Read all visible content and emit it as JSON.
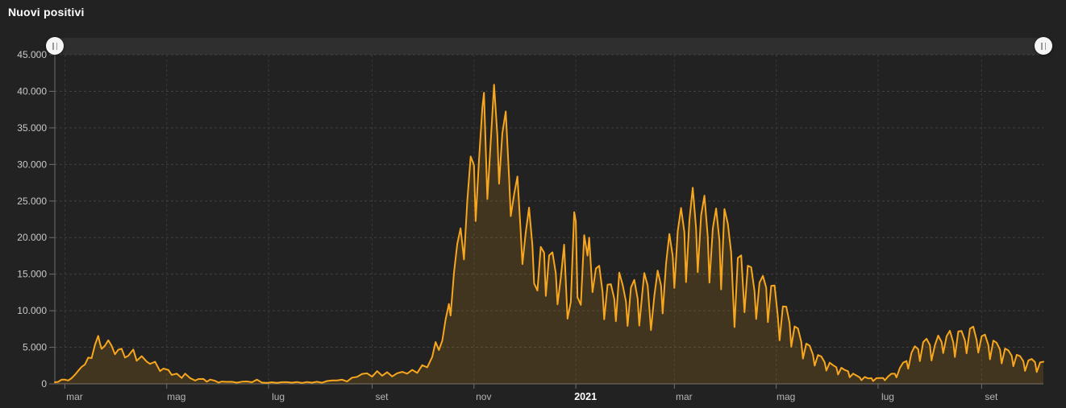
{
  "title": "Nuovi positivi",
  "colors": {
    "background": "#222222",
    "slider_track": "#2f2f2f",
    "slider_handle": "#f5f5f5",
    "line": "#f7a61d",
    "area_fill": "rgba(247,167,27,0.15)",
    "grid_h": "#404040",
    "grid_v": "#393939",
    "axis": "#6e6e6e",
    "y_label": "#c9c9c9",
    "x_label": "#b5b5b5",
    "x_label_year": "#ffffff"
  },
  "chart_data": {
    "type": "area",
    "title": "Nuovi positivi",
    "xlabel": "",
    "ylabel": "",
    "legend": "none",
    "grid": "dashed",
    "x_domain_days": [
      0,
      592
    ],
    "x_axis": {
      "ticks": [
        {
          "day": 6,
          "label": "mar",
          "bold": false
        },
        {
          "day": 67,
          "label": "mag",
          "bold": false
        },
        {
          "day": 128,
          "label": "lug",
          "bold": false
        },
        {
          "day": 190,
          "label": "set",
          "bold": false
        },
        {
          "day": 251,
          "label": "nov",
          "bold": false
        },
        {
          "day": 312,
          "label": "2021",
          "bold": true
        },
        {
          "day": 371,
          "label": "mar",
          "bold": false
        },
        {
          "day": 432,
          "label": "mag",
          "bold": false
        },
        {
          "day": 493,
          "label": "lug",
          "bold": false
        },
        {
          "day": 555,
          "label": "set",
          "bold": false
        }
      ]
    },
    "y_axis": {
      "min": 0,
      "max": 45000,
      "step": 5000,
      "tick_labels": [
        "0",
        "5.000",
        "10.000",
        "15.000",
        "20.000",
        "25.000",
        "30.000",
        "35.000",
        "40.000",
        "45.000"
      ]
    },
    "series": [
      {
        "name": "Nuovi positivi",
        "points": [
          [
            0,
            221
          ],
          [
            2,
            277
          ],
          [
            4,
            571
          ],
          [
            6,
            573
          ],
          [
            8,
            466
          ],
          [
            10,
            769
          ],
          [
            12,
            1247
          ],
          [
            14,
            1797
          ],
          [
            16,
            2313
          ],
          [
            18,
            2651
          ],
          [
            20,
            3590
          ],
          [
            22,
            3526
          ],
          [
            24,
            5322
          ],
          [
            26,
            6557
          ],
          [
            27,
            5560
          ],
          [
            28,
            4789
          ],
          [
            30,
            5210
          ],
          [
            32,
            5959
          ],
          [
            34,
            5217
          ],
          [
            36,
            4053
          ],
          [
            38,
            4668
          ],
          [
            40,
            4805
          ],
          [
            42,
            3599
          ],
          [
            44,
            3836
          ],
          [
            47,
            4694
          ],
          [
            49,
            3153
          ],
          [
            52,
            3786
          ],
          [
            55,
            3047
          ],
          [
            57,
            2729
          ],
          [
            60,
            3021
          ],
          [
            63,
            1739
          ],
          [
            65,
            2086
          ],
          [
            68,
            1900
          ],
          [
            70,
            1221
          ],
          [
            73,
            1401
          ],
          [
            76,
            802
          ],
          [
            78,
            1402
          ],
          [
            81,
            789
          ],
          [
            84,
            451
          ],
          [
            86,
            665
          ],
          [
            89,
            669
          ],
          [
            91,
            300
          ],
          [
            93,
            584
          ],
          [
            96,
            416
          ],
          [
            98,
            178
          ],
          [
            100,
            321
          ],
          [
            103,
            270
          ],
          [
            106,
            283
          ],
          [
            109,
            163
          ],
          [
            112,
            301
          ],
          [
            115,
            331
          ],
          [
            118,
            224
          ],
          [
            121,
            577
          ],
          [
            124,
            175
          ],
          [
            127,
            142
          ],
          [
            130,
            223
          ],
          [
            133,
            138
          ],
          [
            136,
            229
          ],
          [
            139,
            234
          ],
          [
            142,
            162
          ],
          [
            145,
            249
          ],
          [
            148,
            128
          ],
          [
            151,
            252
          ],
          [
            154,
            170
          ],
          [
            157,
            289
          ],
          [
            160,
            159
          ],
          [
            163,
            384
          ],
          [
            166,
            463
          ],
          [
            169,
            476
          ],
          [
            172,
            574
          ],
          [
            175,
            320
          ],
          [
            178,
            845
          ],
          [
            181,
            953
          ],
          [
            184,
            1367
          ],
          [
            187,
            1444
          ],
          [
            190,
            978
          ],
          [
            193,
            1733
          ],
          [
            196,
            1108
          ],
          [
            199,
            1597
          ],
          [
            202,
            1008
          ],
          [
            205,
            1452
          ],
          [
            208,
            1638
          ],
          [
            211,
            1392
          ],
          [
            214,
            1912
          ],
          [
            217,
            1494
          ],
          [
            220,
            2548
          ],
          [
            223,
            2257
          ],
          [
            226,
            3678
          ],
          [
            228,
            5724
          ],
          [
            230,
            4619
          ],
          [
            232,
            5901
          ],
          [
            234,
            8804
          ],
          [
            236,
            10925
          ],
          [
            237,
            9338
          ],
          [
            239,
            15199
          ],
          [
            241,
            19143
          ],
          [
            243,
            21273
          ],
          [
            245,
            17012
          ],
          [
            247,
            24991
          ],
          [
            249,
            31084
          ],
          [
            251,
            29907
          ],
          [
            252,
            22253
          ],
          [
            254,
            30550
          ],
          [
            256,
            37809
          ],
          [
            257,
            39811
          ],
          [
            259,
            25271
          ],
          [
            261,
            32961
          ],
          [
            263,
            40902
          ],
          [
            265,
            33979
          ],
          [
            266,
            27354
          ],
          [
            268,
            34283
          ],
          [
            270,
            37242
          ],
          [
            272,
            28337
          ],
          [
            273,
            22930
          ],
          [
            275,
            25853
          ],
          [
            277,
            28352
          ],
          [
            279,
            20648
          ],
          [
            280,
            16377
          ],
          [
            282,
            20709
          ],
          [
            284,
            24099
          ],
          [
            286,
            18887
          ],
          [
            287,
            13720
          ],
          [
            289,
            12756
          ],
          [
            291,
            18727
          ],
          [
            293,
            17938
          ],
          [
            294,
            12030
          ],
          [
            296,
            17572
          ],
          [
            298,
            17992
          ],
          [
            300,
            15104
          ],
          [
            301,
            10872
          ],
          [
            303,
            14522
          ],
          [
            305,
            19037
          ],
          [
            307,
            8913
          ],
          [
            309,
            11212
          ],
          [
            311,
            23477
          ],
          [
            312,
            22211
          ],
          [
            313,
            11831
          ],
          [
            315,
            10800
          ],
          [
            317,
            20331
          ],
          [
            319,
            17533
          ],
          [
            320,
            19978
          ],
          [
            322,
            12532
          ],
          [
            324,
            15774
          ],
          [
            326,
            16146
          ],
          [
            328,
            12545
          ],
          [
            329,
            8824
          ],
          [
            331,
            13571
          ],
          [
            333,
            13633
          ],
          [
            335,
            11629
          ],
          [
            336,
            8561
          ],
          [
            338,
            15204
          ],
          [
            340,
            13574
          ],
          [
            342,
            11252
          ],
          [
            343,
            7925
          ],
          [
            345,
            13189
          ],
          [
            347,
            14218
          ],
          [
            349,
            11641
          ],
          [
            350,
            7970
          ],
          [
            352,
            12956
          ],
          [
            353,
            15146
          ],
          [
            355,
            13452
          ],
          [
            357,
            7351
          ],
          [
            359,
            12074
          ],
          [
            361,
            15479
          ],
          [
            363,
            13452
          ],
          [
            364,
            9630
          ],
          [
            366,
            16424
          ],
          [
            368,
            20499
          ],
          [
            370,
            17455
          ],
          [
            371,
            13114
          ],
          [
            373,
            20884
          ],
          [
            375,
            24036
          ],
          [
            377,
            20765
          ],
          [
            378,
            13902
          ],
          [
            380,
            22409
          ],
          [
            382,
            26824
          ],
          [
            384,
            21315
          ],
          [
            385,
            15267
          ],
          [
            387,
            23059
          ],
          [
            389,
            25735
          ],
          [
            391,
            20159
          ],
          [
            392,
            13846
          ],
          [
            394,
            21267
          ],
          [
            396,
            23987
          ],
          [
            398,
            19611
          ],
          [
            399,
            12916
          ],
          [
            401,
            23904
          ],
          [
            403,
            21932
          ],
          [
            405,
            18025
          ],
          [
            407,
            7767
          ],
          [
            409,
            17221
          ],
          [
            411,
            17567
          ],
          [
            413,
            9789
          ],
          [
            415,
            16168
          ],
          [
            417,
            15943
          ],
          [
            419,
            12694
          ],
          [
            420,
            8864
          ],
          [
            422,
            13844
          ],
          [
            424,
            14761
          ],
          [
            426,
            13158
          ],
          [
            427,
            8444
          ],
          [
            429,
            13385
          ],
          [
            431,
            13446
          ],
          [
            433,
            9148
          ],
          [
            434,
            5948
          ],
          [
            436,
            10585
          ],
          [
            438,
            10554
          ],
          [
            440,
            8292
          ],
          [
            441,
            5080
          ],
          [
            443,
            7852
          ],
          [
            445,
            7567
          ],
          [
            447,
            5753
          ],
          [
            448,
            3455
          ],
          [
            450,
            5506
          ],
          [
            452,
            5218
          ],
          [
            454,
            3995
          ],
          [
            455,
            2490
          ],
          [
            457,
            3937
          ],
          [
            459,
            3738
          ],
          [
            461,
            2949
          ],
          [
            462,
            1820
          ],
          [
            464,
            2897
          ],
          [
            466,
            2557
          ],
          [
            468,
            2275
          ],
          [
            469,
            1273
          ],
          [
            471,
            2199
          ],
          [
            473,
            1901
          ],
          [
            475,
            1723
          ],
          [
            476,
            907
          ],
          [
            478,
            1400
          ],
          [
            480,
            1147
          ],
          [
            482,
            881
          ],
          [
            483,
            495
          ],
          [
            485,
            951
          ],
          [
            487,
            753
          ],
          [
            489,
            782
          ],
          [
            490,
            389
          ],
          [
            492,
            776
          ],
          [
            494,
            794
          ],
          [
            496,
            808
          ],
          [
            497,
            480
          ],
          [
            499,
            1010
          ],
          [
            501,
            1390
          ],
          [
            503,
            1391
          ],
          [
            504,
            888
          ],
          [
            506,
            2153
          ],
          [
            508,
            2898
          ],
          [
            510,
            3121
          ],
          [
            511,
            2072
          ],
          [
            513,
            4259
          ],
          [
            515,
            5143
          ],
          [
            517,
            4743
          ],
          [
            518,
            3117
          ],
          [
            520,
            5696
          ],
          [
            522,
            6171
          ],
          [
            524,
            5321
          ],
          [
            525,
            3190
          ],
          [
            527,
            5275
          ],
          [
            529,
            6599
          ],
          [
            531,
            5735
          ],
          [
            532,
            4200
          ],
          [
            534,
            6500
          ],
          [
            536,
            7260
          ],
          [
            538,
            5664
          ],
          [
            539,
            3674
          ],
          [
            541,
            7162
          ],
          [
            543,
            7224
          ],
          [
            545,
            5923
          ],
          [
            546,
            4168
          ],
          [
            548,
            7548
          ],
          [
            550,
            7826
          ],
          [
            552,
            5959
          ],
          [
            553,
            4257
          ],
          [
            555,
            6503
          ],
          [
            557,
            6735
          ],
          [
            559,
            5315
          ],
          [
            560,
            3361
          ],
          [
            562,
            5923
          ],
          [
            564,
            5621
          ],
          [
            566,
            4664
          ],
          [
            567,
            2800
          ],
          [
            569,
            4830
          ],
          [
            571,
            4578
          ],
          [
            573,
            3838
          ],
          [
            574,
            2407
          ],
          [
            576,
            3970
          ],
          [
            578,
            3797
          ],
          [
            580,
            3099
          ],
          [
            581,
            1772
          ],
          [
            583,
            3212
          ],
          [
            585,
            3405
          ],
          [
            587,
            2968
          ],
          [
            588,
            1612
          ],
          [
            590,
            2938
          ],
          [
            592,
            3023
          ]
        ]
      }
    ]
  }
}
